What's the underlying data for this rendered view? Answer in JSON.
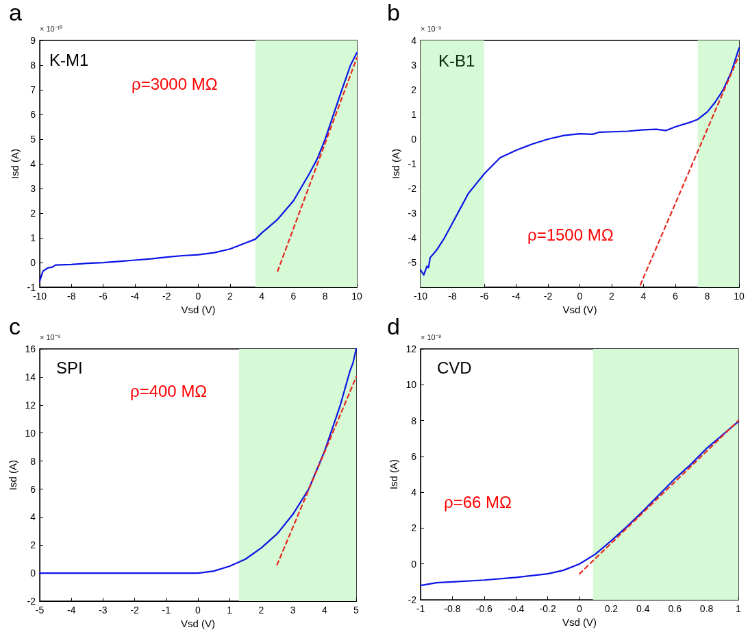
{
  "chart_data": [
    {
      "type": "line",
      "title": "a",
      "xlabel": "Vsd (V)",
      "ylabel": "Isd (A)",
      "annotations": [
        "× 10⁻¹⁰",
        "K-M1",
        "ρ=3000 MΩ"
      ],
      "xlim": [
        -10,
        10
      ],
      "xticks": [
        -10,
        -8,
        -6,
        -4,
        -2,
        0,
        2,
        4,
        6,
        8,
        10
      ],
      "ylim": [
        -1,
        9
      ],
      "yticks": [
        -1,
        0,
        1,
        2,
        3,
        4,
        5,
        6,
        7,
        8,
        9
      ],
      "grid": false,
      "marker": "none",
      "bands": [
        {
          "axis": "x",
          "from": 3.6,
          "to": 10,
          "color": "#d5fad5"
        }
      ],
      "series": [
        {
          "color": "#0a14e6",
          "line_style": "solid",
          "x": [
            -10,
            -9.8,
            -9.5,
            -9.2,
            -9,
            -8,
            -7,
            -6,
            -5,
            -4,
            -3,
            -2,
            -1,
            0,
            1,
            2,
            3,
            3.6,
            4,
            5,
            6,
            7,
            7.5,
            8,
            9,
            9.6,
            10
          ],
          "values": [
            -0.75,
            -0.35,
            -0.22,
            -0.18,
            -0.1,
            -0.08,
            -0.03,
            0.0,
            0.05,
            0.1,
            0.15,
            0.22,
            0.28,
            0.32,
            0.4,
            0.55,
            0.8,
            0.95,
            1.2,
            1.75,
            2.5,
            3.6,
            4.2,
            5.0,
            6.9,
            8.0,
            8.5
          ]
        },
        {
          "color": "#e8261e",
          "line_style": "dashed",
          "x": [
            5,
            10
          ],
          "values": [
            -0.35,
            8.3
          ]
        }
      ]
    },
    {
      "type": "line",
      "title": "b",
      "xlabel": "Vsd (V)",
      "ylabel": "Isd (A)",
      "annotations": [
        "× 10⁻⁹",
        "K-B1",
        "ρ=1500 MΩ"
      ],
      "xlim": [
        -10,
        10
      ],
      "xticks": [
        -10,
        -8,
        -6,
        -4,
        -2,
        0,
        2,
        4,
        6,
        8,
        10
      ],
      "ylim": [
        -6,
        4
      ],
      "yticks": [
        -5,
        -4,
        -3,
        -2,
        -1,
        0,
        1,
        2,
        3,
        4
      ],
      "grid": false,
      "marker": "none",
      "bands": [
        {
          "axis": "x",
          "from": -10,
          "to": -6,
          "color": "#d5fad5"
        },
        {
          "axis": "x",
          "from": 7.4,
          "to": 10,
          "color": "#d5fad5"
        }
      ],
      "series": [
        {
          "color": "#0a14e6",
          "line_style": "solid",
          "x": [
            -10,
            -9.8,
            -9.6,
            -9.5,
            -9.4,
            -9,
            -8.5,
            -8,
            -7.5,
            -7,
            -6.5,
            -6,
            -5,
            -4,
            -3,
            -2,
            -1,
            0,
            0.8,
            1.2,
            2,
            3,
            4,
            4.8,
            5.4,
            6,
            7,
            7.4,
            8,
            8.5,
            9,
            9.5,
            10
          ],
          "values": [
            -5.3,
            -5.5,
            -5.15,
            -5.2,
            -4.8,
            -4.5,
            -4.0,
            -3.4,
            -2.8,
            -2.2,
            -1.8,
            -1.4,
            -0.75,
            -0.45,
            -0.2,
            0.0,
            0.15,
            0.22,
            0.2,
            0.28,
            0.3,
            0.32,
            0.38,
            0.4,
            0.35,
            0.5,
            0.7,
            0.8,
            1.1,
            1.5,
            2.0,
            2.7,
            3.7
          ]
        },
        {
          "color": "#e8261e",
          "line_style": "dashed",
          "x": [
            3.8,
            10
          ],
          "values": [
            -5.9,
            3.4
          ]
        }
      ]
    },
    {
      "type": "line",
      "title": "c",
      "xlabel": "Vsd (V)",
      "ylabel": "Isd (A)",
      "annotations": [
        "× 10⁻⁹",
        "SPI",
        "ρ=400 MΩ"
      ],
      "xlim": [
        -5,
        5
      ],
      "xticks": [
        -5,
        -4,
        -3,
        -2,
        -1,
        0,
        1,
        2,
        3,
        4,
        5
      ],
      "ylim": [
        -2,
        16
      ],
      "yticks": [
        -2,
        0,
        2,
        4,
        6,
        8,
        10,
        12,
        14,
        16
      ],
      "grid": false,
      "marker": "none",
      "bands": [
        {
          "axis": "x",
          "from": 1.3,
          "to": 5,
          "color": "#d5fad5"
        }
      ],
      "series": [
        {
          "color": "#0a14e6",
          "line_style": "solid",
          "x": [
            -5,
            -4,
            -3,
            -2,
            -1,
            0,
            0.5,
            1,
            1.5,
            2,
            2.5,
            3,
            3.5,
            4,
            4.5,
            4.8,
            4.9,
            5
          ],
          "values": [
            0,
            0,
            0,
            0,
            0,
            0,
            0.15,
            0.5,
            1.0,
            1.8,
            2.8,
            4.2,
            6.0,
            8.7,
            12.0,
            14.4,
            15,
            16
          ]
        },
        {
          "color": "#e8261e",
          "line_style": "dashed",
          "x": [
            2.5,
            5
          ],
          "values": [
            0.6,
            14
          ]
        }
      ]
    },
    {
      "type": "line",
      "title": "d",
      "xlabel": "Vsd (V)",
      "ylabel": "Isd (A)",
      "annotations": [
        "× 10⁻⁸",
        "CVD",
        "ρ=66 MΩ"
      ],
      "xlim": [
        -1,
        1
      ],
      "xticks": [
        -1,
        -0.8,
        -0.6,
        -0.4,
        -0.2,
        0,
        0.2,
        0.4,
        0.6,
        0.8,
        1
      ],
      "ylim": [
        -2,
        12
      ],
      "yticks": [
        -2,
        0,
        2,
        4,
        6,
        8,
        10,
        12
      ],
      "grid": false,
      "marker": "none",
      "bands": [
        {
          "axis": "x",
          "from": 0.085,
          "to": 1,
          "color": "#d5fad5"
        }
      ],
      "series": [
        {
          "color": "#0a14e6",
          "line_style": "solid",
          "x": [
            -1,
            -0.9,
            -0.8,
            -0.6,
            -0.4,
            -0.2,
            -0.1,
            0,
            0.1,
            0.2,
            0.3,
            0.4,
            0.5,
            0.6,
            0.7,
            0.8,
            0.9,
            1
          ],
          "values": [
            -1.2,
            -1.05,
            -1.0,
            -0.9,
            -0.75,
            -0.55,
            -0.35,
            0,
            0.55,
            1.3,
            2.1,
            2.95,
            3.85,
            4.75,
            5.55,
            6.45,
            7.2,
            7.95
          ]
        },
        {
          "color": "#e8261e",
          "line_style": "dashed",
          "x": [
            0,
            1
          ],
          "values": [
            -0.55,
            8.0
          ]
        }
      ]
    }
  ]
}
